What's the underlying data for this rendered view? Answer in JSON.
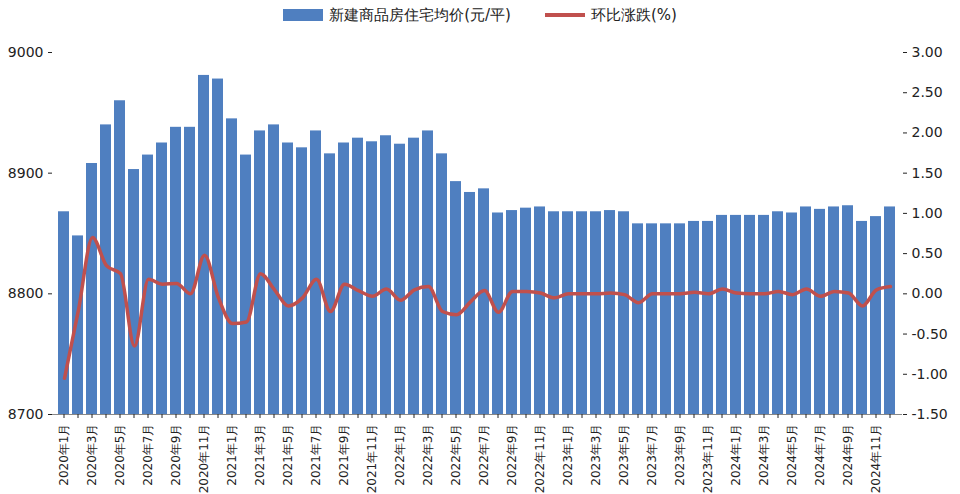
{
  "chart_data": {
    "type": "bar",
    "legend": "top",
    "categories": [
      "2020年1月",
      null,
      "2020年3月",
      null,
      "2020年5月",
      null,
      "2020年7月",
      null,
      "2020年9月",
      null,
      "2020年11月",
      null,
      "2021年1月",
      null,
      "2021年3月",
      null,
      "2021年5月",
      null,
      "2021年7月",
      null,
      "2021年9月",
      null,
      "2021年11月",
      null,
      "2022年1月",
      null,
      "2022年3月",
      null,
      "2022年5月",
      null,
      "2022年7月",
      null,
      "2022年9月",
      null,
      "2022年11月",
      null,
      "2023年1月",
      null,
      "2023年3月",
      null,
      "2023年5月",
      null,
      "2023年7月",
      null,
      "2023年9月",
      null,
      "2023年11月",
      null,
      "2024年1月",
      null,
      "2024年3月",
      null,
      "2024年5月",
      null,
      "2024年7月",
      null,
      "2024年9月",
      null,
      "2024年11月",
      null
    ],
    "series": [
      {
        "name": "新建商品房住宅均价(元/平)",
        "type": "bar",
        "color": "#4f7fc0",
        "values": [
          8868,
          8848,
          8908,
          8940,
          8960,
          8903,
          8915,
          8925,
          8938,
          8938,
          8981,
          8978,
          8945,
          8915,
          8935,
          8940,
          8925,
          8921,
          8935,
          8916,
          8925,
          8929,
          8926,
          8931,
          8924,
          8929,
          8935,
          8916,
          8893,
          8884,
          8887,
          8867,
          8869,
          8871,
          8872,
          8868,
          8868,
          8868,
          8868,
          8869,
          8868,
          8858,
          8858,
          8858,
          8858,
          8860,
          8860,
          8865,
          8865,
          8865,
          8865,
          8868,
          8867,
          8872,
          8870,
          8872,
          8873,
          8860,
          8864,
          8872
        ]
      },
      {
        "name": "环比涨跌(%)",
        "type": "line",
        "axis": "y2",
        "color": "#c0504d",
        "values": [
          -1.05,
          -0.2,
          0.7,
          0.35,
          0.25,
          -0.65,
          0.18,
          0.12,
          0.13,
          0.0,
          0.48,
          -0.05,
          -0.37,
          -0.35,
          0.25,
          0.05,
          -0.15,
          -0.05,
          0.18,
          -0.22,
          0.12,
          0.04,
          -0.03,
          0.06,
          -0.08,
          0.05,
          0.09,
          -0.22,
          -0.26,
          -0.1,
          0.04,
          -0.23,
          0.03,
          0.03,
          0.01,
          -0.05,
          0.0,
          0.0,
          0.0,
          0.01,
          -0.01,
          -0.11,
          0.0,
          0.0,
          0.0,
          0.02,
          0.0,
          0.06,
          0.01,
          0.0,
          0.0,
          0.03,
          -0.01,
          0.06,
          -0.03,
          0.03,
          0.01,
          -0.15,
          0.05,
          0.09
        ]
      }
    ],
    "ylim": [
      8700,
      9000
    ],
    "yticks": [
      8700,
      8800,
      8900,
      9000
    ],
    "y2lim": [
      -1.5,
      3.0
    ],
    "y2ticks": [
      {
        "value": -1.5,
        "label": "-1.50"
      },
      {
        "value": -1.0,
        "label": "-1.00"
      },
      {
        "value": -0.5,
        "label": "-0.50"
      },
      {
        "value": 0,
        "label": "0.00"
      },
      {
        "value": 0.5,
        "label": "0.50"
      },
      {
        "value": 1.0,
        "label": "1.00"
      },
      {
        "value": 1.5,
        "label": "1.50"
      },
      {
        "value": 2.0,
        "label": "2.00"
      },
      {
        "value": 2.5,
        "label": "2.50"
      },
      {
        "value": 3.0,
        "label": "3.00"
      }
    ]
  }
}
